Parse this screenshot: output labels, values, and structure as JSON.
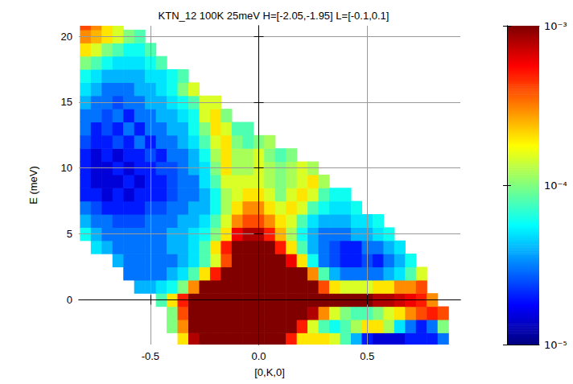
{
  "chart_data": {
    "type": "heatmap",
    "title": "KTN_12 100K 25meV H=[-2.05,-1.95] L=[-0.1,0.1]",
    "x_label": "[0,K,0]",
    "y_label": "E (meV)",
    "xlim": [
      -0.83,
      0.93
    ],
    "xticks": [
      -0.5,
      {
        "value": 0,
        "label": "0.0"
      },
      0.5
    ],
    "ylim": [
      -3.4,
      20.8
    ],
    "yticks": [
      0,
      5,
      10,
      15,
      20
    ],
    "grid": true,
    "x": [
      -0.8,
      -0.75,
      -0.7,
      -0.65,
      -0.6,
      -0.55,
      -0.5,
      -0.45,
      -0.4,
      -0.35,
      -0.3,
      -0.25,
      -0.2,
      -0.15,
      -0.1,
      -0.05,
      0,
      0.05,
      0.1,
      0.15,
      0.2,
      0.25,
      0.3,
      0.35,
      0.4,
      0.45,
      0.5,
      0.55,
      0.6,
      0.65,
      0.7,
      0.75,
      0.8,
      0.85,
      0.9
    ],
    "y": [
      -3,
      -2,
      -1,
      0,
      1,
      2,
      3,
      4,
      5,
      6,
      7,
      8,
      9,
      10,
      11,
      12,
      13,
      14,
      15,
      16,
      17,
      18,
      19,
      20,
      21
    ],
    "values": [
      [
        null,
        null,
        null,
        null,
        null,
        null,
        null,
        null,
        null,
        0.0002,
        0.0008,
        0.003,
        0.003,
        0.003,
        0.003,
        0.003,
        0.003,
        0.003,
        0.0015,
        0.0005,
        0.0002,
        0.0002,
        0.0002,
        0.00015,
        8e-05,
        4e-05,
        2e-05,
        1.5e-05,
        1.5e-05,
        1.5e-05,
        2e-05,
        2e-05,
        2e-05,
        3e-05,
        null
      ],
      [
        null,
        null,
        null,
        null,
        null,
        null,
        null,
        null,
        0.0001,
        0.0003,
        0.001,
        0.003,
        0.003,
        0.003,
        0.003,
        0.003,
        0.003,
        0.003,
        0.003,
        0.0015,
        0.0005,
        0.00015,
        8e-05,
        6e-05,
        8e-05,
        0.00012,
        0.0002,
        0.0002,
        0.00012,
        5e-05,
        3e-05,
        2e-05,
        3e-05,
        0.0001,
        null
      ],
      [
        null,
        null,
        null,
        null,
        null,
        null,
        null,
        null,
        0.0001,
        0.0004,
        0.0015,
        0.004,
        0.004,
        0.004,
        0.004,
        0.004,
        0.004,
        0.004,
        0.004,
        0.004,
        0.002,
        0.0008,
        0.0003,
        0.00015,
        0.0001,
        8e-05,
        8e-05,
        0.0001,
        0.00015,
        0.0002,
        0.0003,
        0.0004,
        0.0005,
        0.0004,
        null
      ],
      [
        null,
        null,
        null,
        null,
        null,
        null,
        null,
        8e-05,
        0.0002,
        0.0005,
        0.0015,
        0.005,
        0.005,
        0.005,
        0.005,
        0.005,
        0.005,
        0.005,
        0.005,
        0.005,
        0.005,
        0.003,
        0.002,
        0.0015,
        0.0012,
        0.001,
        0.001,
        0.0008,
        0.0008,
        0.0007,
        0.0006,
        0.0005,
        0.0003,
        null,
        null
      ],
      [
        null,
        null,
        null,
        null,
        null,
        4e-05,
        4e-05,
        5e-05,
        6e-05,
        0.0001,
        0.0003,
        0.001,
        0.002,
        0.003,
        0.004,
        0.004,
        0.004,
        0.004,
        0.004,
        0.004,
        0.002,
        0.001,
        0.0004,
        0.0002,
        0.00015,
        0.00015,
        0.00015,
        0.0002,
        0.0002,
        0.0003,
        0.0003,
        0.0004,
        null,
        null,
        null
      ],
      [
        null,
        null,
        null,
        null,
        3e-05,
        3e-05,
        3e-05,
        3e-05,
        4e-05,
        5e-05,
        8e-05,
        0.0002,
        0.0005,
        0.001,
        0.002,
        0.003,
        0.003,
        0.003,
        0.003,
        0.002,
        0.001,
        0.0003,
        8e-05,
        4e-05,
        3e-05,
        3e-05,
        3e-05,
        3e-05,
        4e-05,
        5e-05,
        8e-05,
        0.00015,
        null,
        null,
        null
      ],
      [
        null,
        null,
        null,
        4e-05,
        3e-05,
        3e-05,
        3e-05,
        3e-05,
        3e-05,
        4e-05,
        5e-05,
        8e-05,
        0.00015,
        0.0004,
        0.001,
        0.002,
        0.002,
        0.002,
        0.0015,
        0.0006,
        0.0002,
        6e-05,
        3e-05,
        2.5e-05,
        2e-05,
        2e-05,
        2.5e-05,
        2e-05,
        3e-05,
        4e-05,
        6e-05,
        null,
        null,
        null,
        null
      ],
      [
        null,
        5e-05,
        4e-05,
        3e-05,
        3e-05,
        3e-05,
        3e-05,
        3e-05,
        4e-05,
        4e-05,
        5e-05,
        8e-05,
        0.0002,
        0.0005,
        0.001,
        0.0015,
        0.0015,
        0.001,
        0.0005,
        0.0002,
        8e-05,
        4e-05,
        3e-05,
        2.5e-05,
        2e-05,
        2e-05,
        3e-05,
        3e-05,
        4e-05,
        5e-05,
        null,
        null,
        null,
        null,
        null
      ],
      [
        6e-05,
        4e-05,
        3e-05,
        3e-05,
        3e-05,
        3e-05,
        3e-05,
        3e-05,
        4e-05,
        4e-05,
        5e-05,
        6e-05,
        0.0001,
        0.0002,
        0.0006,
        0.0008,
        0.0008,
        0.0005,
        0.00025,
        0.00012,
        6e-05,
        4e-05,
        3e-05,
        3e-05,
        3e-05,
        4e-05,
        4e-05,
        5e-05,
        6e-05,
        null,
        null,
        null,
        null,
        null,
        null
      ],
      [
        4e-05,
        3e-05,
        3e-05,
        2.5e-05,
        2.5e-05,
        2.5e-05,
        3e-05,
        3e-05,
        3e-05,
        4e-05,
        4e-05,
        5e-05,
        8e-05,
        0.00015,
        0.0003,
        0.0004,
        0.0004,
        0.0003,
        0.0002,
        0.00015,
        8e-05,
        5e-05,
        4e-05,
        4e-05,
        4e-05,
        5e-05,
        5e-05,
        6e-05,
        null,
        null,
        null,
        null,
        null,
        null,
        null
      ],
      [
        3e-05,
        2.5e-05,
        2e-05,
        2e-05,
        2e-05,
        2e-05,
        2.5e-05,
        2.5e-05,
        3e-05,
        3e-05,
        4e-05,
        4e-05,
        6e-05,
        0.00012,
        0.0002,
        0.0003,
        0.0003,
        0.0002,
        0.00015,
        0.0002,
        0.00015,
        8e-05,
        6e-05,
        5e-05,
        5e-05,
        6e-05,
        null,
        null,
        null,
        null,
        null,
        null,
        null,
        null,
        null
      ],
      [
        2e-05,
        2e-05,
        1.5e-05,
        2e-05,
        1.5e-05,
        2e-05,
        2e-05,
        2e-05,
        2.5e-05,
        3e-05,
        3e-05,
        4e-05,
        6e-05,
        0.00012,
        0.00015,
        0.0002,
        0.0002,
        0.00015,
        0.0001,
        0.00015,
        0.0002,
        0.00015,
        8e-05,
        6e-05,
        6e-05,
        null,
        null,
        null,
        null,
        null,
        null,
        null,
        null,
        null,
        null
      ],
      [
        2e-05,
        1.5e-05,
        1.5e-05,
        1.5e-05,
        2e-05,
        1.5e-05,
        2e-05,
        2e-05,
        2.5e-05,
        3e-05,
        3e-05,
        5e-05,
        8e-05,
        0.00015,
        0.00015,
        0.00015,
        0.00015,
        0.00012,
        0.0001,
        0.00012,
        0.00015,
        0.0002,
        0.00012,
        null,
        null,
        null,
        null,
        null,
        null,
        null,
        null,
        null,
        null,
        null,
        null
      ],
      [
        2e-05,
        1.5e-05,
        1.5e-05,
        2e-05,
        1.5e-05,
        2e-05,
        2e-05,
        2.5e-05,
        2.5e-05,
        3e-05,
        4e-05,
        5e-05,
        0.0001,
        0.0002,
        0.00012,
        0.00012,
        0.00015,
        0.00012,
        0.0001,
        0.00012,
        0.00015,
        0.00012,
        null,
        null,
        null,
        null,
        null,
        null,
        null,
        null,
        null,
        null,
        null,
        null,
        null
      ],
      [
        2e-05,
        1.5e-05,
        2e-05,
        1.5e-05,
        2e-05,
        2e-05,
        2.5e-05,
        2e-05,
        3e-05,
        3e-05,
        4e-05,
        6e-05,
        0.00012,
        0.0002,
        0.00012,
        0.00012,
        0.00015,
        0.0001,
        8e-05,
        0.0001,
        null,
        null,
        null,
        null,
        null,
        null,
        null,
        null,
        null,
        null,
        null,
        null,
        null,
        null,
        null
      ],
      [
        2.5e-05,
        2e-05,
        2e-05,
        2.5e-05,
        2e-05,
        3e-05,
        2e-05,
        3e-05,
        3e-05,
        4e-05,
        5e-05,
        8e-05,
        0.00015,
        0.0002,
        0.0001,
        8e-05,
        0.0001,
        0.00012,
        null,
        null,
        null,
        null,
        null,
        null,
        null,
        null,
        null,
        null,
        null,
        null,
        null,
        null,
        null,
        null,
        null
      ],
      [
        3e-05,
        2e-05,
        2.5e-05,
        2e-05,
        3e-05,
        2e-05,
        3e-05,
        3e-05,
        4e-05,
        4e-05,
        6e-05,
        0.0001,
        0.0002,
        0.00015,
        8e-05,
        8e-05,
        null,
        null,
        null,
        null,
        null,
        null,
        null,
        null,
        null,
        null,
        null,
        null,
        null,
        null,
        null,
        null,
        null,
        null,
        null
      ],
      [
        3e-05,
        3e-05,
        2.5e-05,
        3e-05,
        2e-05,
        3e-05,
        3e-05,
        4e-05,
        4e-05,
        5e-05,
        6e-05,
        0.00015,
        0.0002,
        0.0001,
        null,
        null,
        null,
        null,
        null,
        null,
        null,
        null,
        null,
        null,
        null,
        null,
        null,
        null,
        null,
        null,
        null,
        null,
        null,
        null,
        null
      ],
      [
        4e-05,
        3e-05,
        3e-05,
        2.5e-05,
        3e-05,
        3e-05,
        4e-05,
        4e-05,
        5e-05,
        6e-05,
        8e-05,
        0.00015,
        0.00015,
        null,
        null,
        null,
        null,
        null,
        null,
        null,
        null,
        null,
        null,
        null,
        null,
        null,
        null,
        null,
        null,
        null,
        null,
        null,
        null,
        null,
        null
      ],
      [
        5e-05,
        4e-05,
        3e-05,
        3e-05,
        3e-05,
        4e-05,
        4e-05,
        5e-05,
        6e-05,
        0.0001,
        0.00015,
        null,
        null,
        null,
        null,
        null,
        null,
        null,
        null,
        null,
        null,
        null,
        null,
        null,
        null,
        null,
        null,
        null,
        null,
        null,
        null,
        null,
        null,
        null,
        null
      ],
      [
        6e-05,
        5e-05,
        4e-05,
        4e-05,
        4e-05,
        4e-05,
        5e-05,
        5e-05,
        6e-05,
        8e-05,
        null,
        null,
        null,
        null,
        null,
        null,
        null,
        null,
        null,
        null,
        null,
        null,
        null,
        null,
        null,
        null,
        null,
        null,
        null,
        null,
        null,
        null,
        null,
        null,
        null
      ],
      [
        0.0001,
        8e-05,
        6e-05,
        5e-05,
        5e-05,
        5e-05,
        6e-05,
        8e-05,
        null,
        null,
        null,
        null,
        null,
        null,
        null,
        null,
        null,
        null,
        null,
        null,
        null,
        null,
        null,
        null,
        null,
        null,
        null,
        null,
        null,
        null,
        null,
        null,
        null,
        null,
        null
      ],
      [
        0.0002,
        0.00015,
        0.0001,
        8e-05,
        6e-05,
        6e-05,
        8e-05,
        null,
        null,
        null,
        null,
        null,
        null,
        null,
        null,
        null,
        null,
        null,
        null,
        null,
        null,
        null,
        null,
        null,
        null,
        null,
        null,
        null,
        null,
        null,
        null,
        null,
        null,
        null,
        null
      ],
      [
        0.0003,
        0.00025,
        0.0002,
        0.00015,
        0.0001,
        8e-05,
        null,
        null,
        null,
        null,
        null,
        null,
        null,
        null,
        null,
        null,
        null,
        null,
        null,
        null,
        null,
        null,
        null,
        null,
        null,
        null,
        null,
        null,
        null,
        null,
        null,
        null,
        null,
        null,
        null
      ],
      [
        0.0004,
        0.0003,
        0.0002,
        0.00015,
        null,
        null,
        null,
        null,
        null,
        null,
        null,
        null,
        null,
        null,
        null,
        null,
        null,
        null,
        null,
        null,
        null,
        null,
        null,
        null,
        null,
        null,
        null,
        null,
        null,
        null,
        null,
        null,
        null,
        null,
        null
      ]
    ],
    "color_range": [
      1e-05,
      0.001
    ],
    "color_ticks": [
      {
        "value": 0.001,
        "label": "10⁻³"
      },
      {
        "value": 0.0001,
        "label": "10⁻⁴"
      },
      {
        "value": 1e-05,
        "label": "10⁻⁵"
      }
    ]
  }
}
